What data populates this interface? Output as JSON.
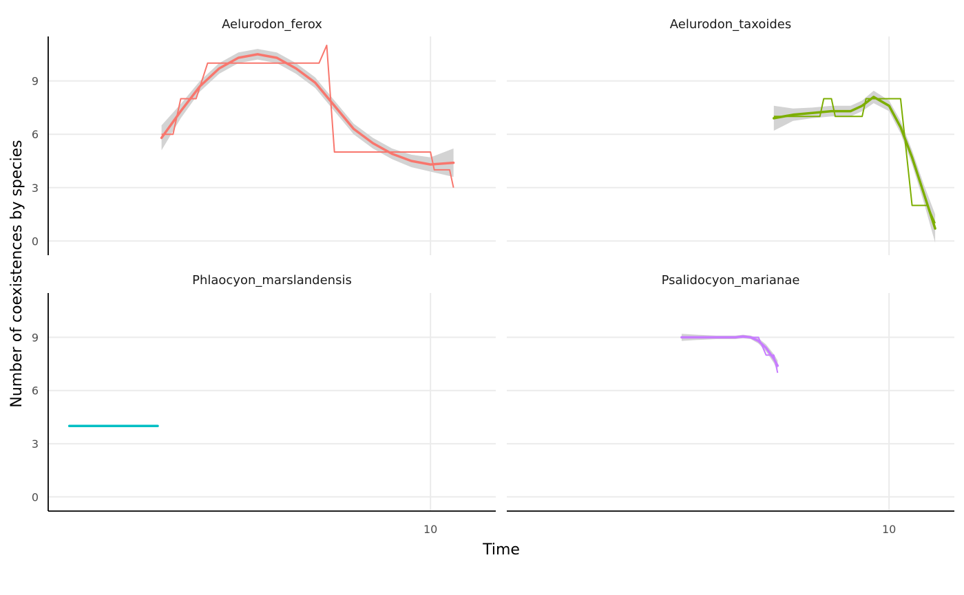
{
  "chart_data": {
    "type": "line",
    "facet_layout": "2x2",
    "xlabel": "Time",
    "ylabel": "Number of coexistences by species",
    "xlim": [
      0.05,
      11.7
    ],
    "ylim": [
      -0.8,
      11.5
    ],
    "x_ticks": [
      10
    ],
    "y_ticks": [
      0,
      3,
      6,
      9
    ],
    "grid": true,
    "legend": "none",
    "panels": [
      {
        "name": "Aelurodon_ferox",
        "color": "#F8766D",
        "raw": {
          "x": [
            3.0,
            3.3,
            3.5,
            3.9,
            4.2,
            4.4,
            7.1,
            7.3,
            7.5,
            10.0,
            10.1,
            10.5,
            10.6
          ],
          "y": [
            6,
            6,
            8,
            8,
            10,
            10,
            10,
            11,
            5,
            5,
            4,
            4,
            3
          ]
        },
        "smooth": {
          "x": [
            3.0,
            3.5,
            4.0,
            4.5,
            5.0,
            5.5,
            6.0,
            6.5,
            7.0,
            7.5,
            8.0,
            8.5,
            9.0,
            9.5,
            10.0,
            10.6
          ],
          "y": [
            5.8,
            7.3,
            8.7,
            9.7,
            10.3,
            10.5,
            10.3,
            9.7,
            8.9,
            7.6,
            6.3,
            5.5,
            4.9,
            4.5,
            4.3,
            4.4
          ],
          "se": [
            0.7,
            0.4,
            0.3,
            0.3,
            0.3,
            0.3,
            0.3,
            0.3,
            0.3,
            0.3,
            0.3,
            0.3,
            0.3,
            0.35,
            0.4,
            0.8
          ]
        }
      },
      {
        "name": "Aelurodon_taxoides",
        "color": "#7CAE00",
        "raw": {
          "x": [
            7.0,
            8.2,
            8.3,
            8.5,
            8.6,
            9.3,
            9.4,
            10.3,
            10.6,
            11.0,
            11.2
          ],
          "y": [
            7,
            7,
            8,
            8,
            7,
            7,
            8,
            8,
            2,
            2,
            1
          ]
        },
        "smooth": {
          "x": [
            7.0,
            7.5,
            8.0,
            8.5,
            9.0,
            9.3,
            9.6,
            10.0,
            10.3,
            10.6,
            10.9,
            11.2
          ],
          "y": [
            6.9,
            7.1,
            7.2,
            7.3,
            7.3,
            7.6,
            8.1,
            7.6,
            6.4,
            4.7,
            2.7,
            0.7
          ],
          "se": [
            0.7,
            0.35,
            0.3,
            0.3,
            0.3,
            0.3,
            0.35,
            0.3,
            0.35,
            0.4,
            0.5,
            0.8
          ]
        }
      },
      {
        "name": "Phlaocyon_marslandensis",
        "color": "#00BFC4",
        "raw": {
          "x": [
            0.6,
            2.9
          ],
          "y": [
            4,
            4
          ]
        },
        "smooth": {
          "x": [
            0.6,
            2.9
          ],
          "y": [
            4,
            4
          ],
          "se": [
            0,
            0
          ]
        }
      },
      {
        "name": "Psalidocyon_marianae",
        "color": "#C77CFF",
        "raw": {
          "x": [
            4.6,
            6.1,
            6.2,
            6.6,
            6.8,
            7.0,
            7.1
          ],
          "y": [
            9,
            9,
            9,
            9,
            8,
            8,
            7
          ]
        },
        "smooth": {
          "x": [
            4.6,
            5.0,
            5.5,
            6.0,
            6.2,
            6.4,
            6.6,
            6.8,
            7.0,
            7.1
          ],
          "y": [
            9.0,
            9.0,
            9.0,
            9.0,
            9.05,
            9.0,
            8.8,
            8.4,
            7.8,
            7.4
          ],
          "se": [
            0.2,
            0.15,
            0.1,
            0.1,
            0.1,
            0.1,
            0.15,
            0.2,
            0.25,
            0.3
          ]
        }
      }
    ]
  }
}
